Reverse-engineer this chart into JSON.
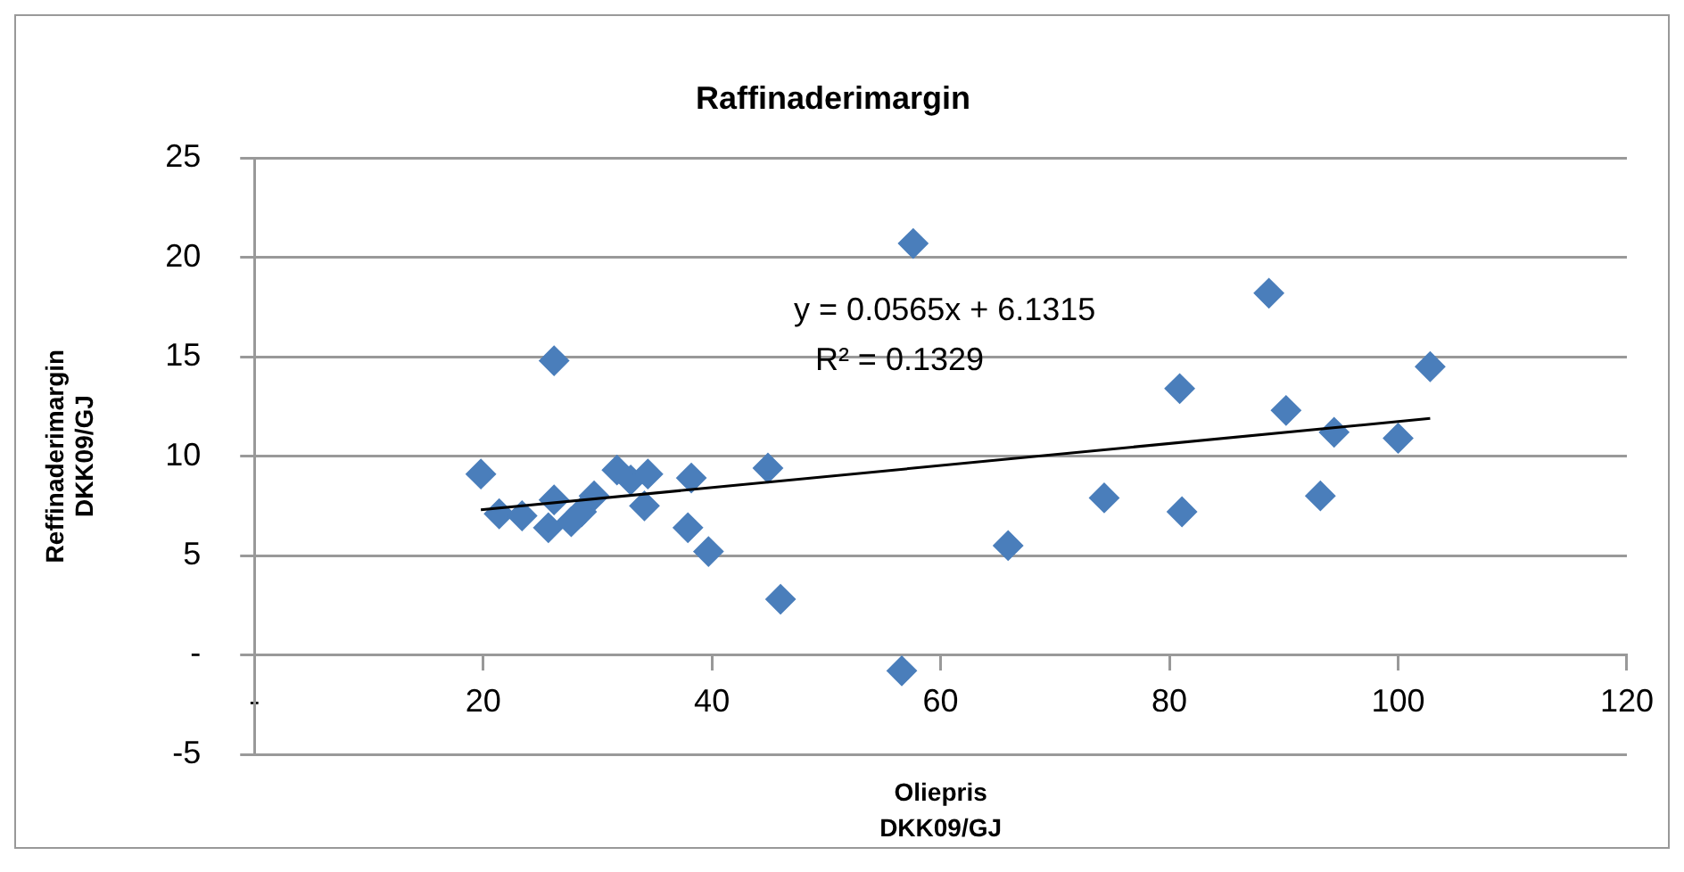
{
  "chart_data": {
    "type": "scatter",
    "title": "Raffinaderimargin",
    "xlabel": "Oliepris\nDKK09/GJ",
    "ylabel": "Reffinaderimargin\nDKK09/GJ",
    "x": [
      19.8,
      21.4,
      23.4,
      25.7,
      26.2,
      26.2,
      27.7,
      28.6,
      29.7,
      31.7,
      32.9,
      34.4,
      34.1,
      38.2,
      37.9,
      39.7,
      44.9,
      46.0,
      57.6,
      56.6,
      65.9,
      74.3,
      80.9,
      81.1,
      88.7,
      90.2,
      93.2,
      94.4,
      100.0,
      102.8
    ],
    "series": [
      {
        "color": "#4a7ebb",
        "values": [
          9.1,
          7.1,
          7.0,
          6.4,
          7.8,
          14.8,
          6.7,
          7.2,
          8.0,
          9.3,
          8.8,
          9.1,
          7.5,
          8.9,
          6.4,
          5.2,
          9.4,
          2.8,
          20.7,
          -0.8,
          5.5,
          7.9,
          13.4,
          7.2,
          18.2,
          12.3,
          8.0,
          11.2,
          10.9,
          14.5
        ]
      },
      {
        "type": "line",
        "color": "#000000",
        "marker": "none",
        "x": [
          19.8,
          102.8
        ],
        "values": [
          7.3,
          11.9
        ]
      }
    ],
    "annotations": [
      "y = 0.0565x + 6.1315",
      "R² = 0.1329"
    ],
    "xlim": [
      0,
      120
    ],
    "xticks": [
      {
        "value": 0,
        "label": "-"
      },
      20,
      40,
      60,
      80,
      100,
      120
    ],
    "ylim": [
      -5,
      25
    ],
    "yticks": [
      -5,
      {
        "value": 0,
        "label": "-"
      },
      5,
      10,
      15,
      20,
      25
    ],
    "grid": "y",
    "legend": false,
    "marker": "diamond"
  }
}
